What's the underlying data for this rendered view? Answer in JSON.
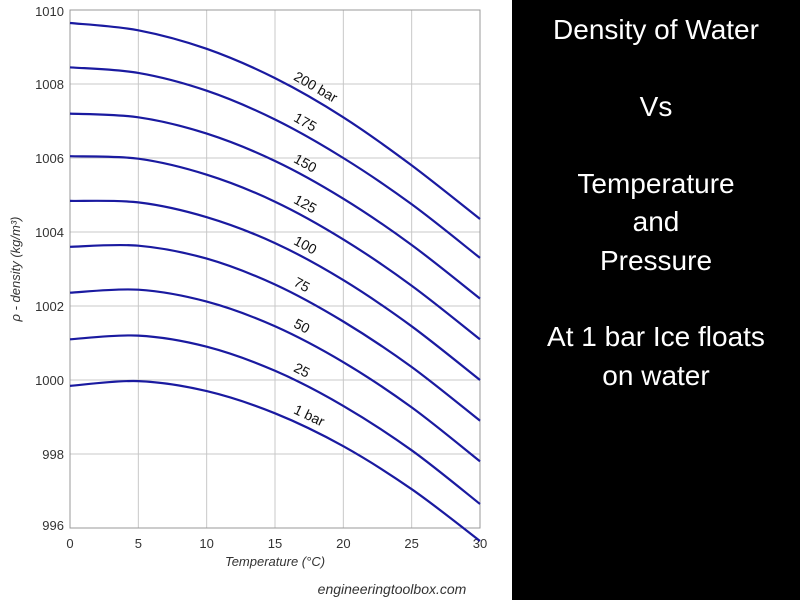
{
  "chart_data": {
    "type": "line",
    "title": "",
    "xlabel": "Temperature (°C)",
    "ylabel": "ρ - density (kg/m³)",
    "xlim": [
      0,
      30
    ],
    "ylim": [
      996,
      1010
    ],
    "x_ticks": [
      "0",
      "5",
      "10",
      "15",
      "20",
      "25",
      "30"
    ],
    "y_ticks": [
      "996",
      "998",
      "1000",
      "1002",
      "1004",
      "1006",
      "1008",
      "1010"
    ],
    "grid": true,
    "series_color": "#1a1aa0",
    "x": [
      0,
      5,
      10,
      15,
      20,
      25,
      30
    ],
    "series": [
      {
        "name": "1 bar",
        "values": [
          999.84,
          999.97,
          999.7,
          999.1,
          998.21,
          997.05,
          995.65
        ]
      },
      {
        "name": "25",
        "values": [
          1001.1,
          1001.2,
          1000.9,
          1000.25,
          999.3,
          998.1,
          996.65
        ]
      },
      {
        "name": "50",
        "values": [
          1002.36,
          1002.44,
          1002.12,
          1001.45,
          1000.48,
          999.26,
          997.8
        ]
      },
      {
        "name": "75",
        "values": [
          1003.6,
          1003.63,
          1003.28,
          1002.58,
          1001.58,
          1000.35,
          998.9
        ]
      },
      {
        "name": "100",
        "values": [
          1004.84,
          1004.8,
          1004.4,
          1003.7,
          1002.7,
          1001.45,
          1000.0
        ]
      },
      {
        "name": "125",
        "values": [
          1006.05,
          1005.98,
          1005.55,
          1004.82,
          1003.8,
          1002.55,
          1001.1
        ]
      },
      {
        "name": "150",
        "values": [
          1007.2,
          1007.1,
          1006.66,
          1005.92,
          1004.9,
          1003.65,
          1002.2
        ]
      },
      {
        "name": "175",
        "values": [
          1008.45,
          1008.3,
          1007.82,
          1007.04,
          1006.0,
          1004.75,
          1003.3
        ]
      },
      {
        "name": "200 bar",
        "values": [
          1009.65,
          1009.45,
          1008.95,
          1008.16,
          1007.1,
          1005.8,
          1004.35
        ]
      }
    ],
    "credit": "engineeringtoolbox.com"
  },
  "side_panel": {
    "lines": [
      "Density of Water",
      "Vs",
      "Temperature",
      "and",
      "Pressure",
      "At 1 bar Ice floats",
      "on water"
    ]
  }
}
